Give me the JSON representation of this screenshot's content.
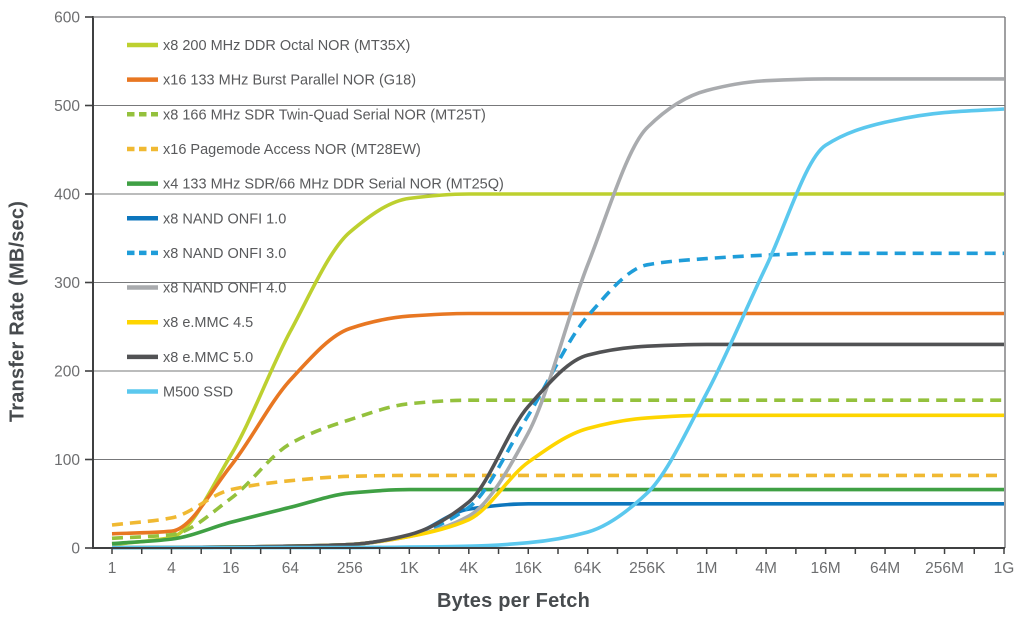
{
  "chart_data": {
    "type": "line",
    "title": "",
    "xlabel": "Bytes per Fetch",
    "ylabel": "Transfer Rate (MB/sec)",
    "x_scale": "log-categorical",
    "x_categories": [
      "1",
      "4",
      "16",
      "64",
      "256",
      "1K",
      "4K",
      "16K",
      "64K",
      "256K",
      "1M",
      "4M",
      "16M",
      "64M",
      "256M",
      "1G"
    ],
    "y_ticks": [
      0,
      100,
      200,
      300,
      400,
      500,
      600
    ],
    "ylim": [
      0,
      600
    ],
    "grid": "horizontal",
    "legend_position": "top-left-inside",
    "colors": {
      "axis": "#3f4041",
      "gridline": "#77787a",
      "tick_label": "#6d6e70",
      "legend_text": "#595a5c",
      "axis_title": "#474b4e"
    },
    "series": [
      {
        "name": "x8 200 MHz DDR Octal NOR (MT35X)",
        "color": "#bdd02f",
        "dash": "solid",
        "values": [
          4,
          12,
          105,
          245,
          357,
          395,
          400,
          400,
          400,
          400,
          400,
          400,
          400,
          400,
          400,
          400
        ]
      },
      {
        "name": "x16 133 MHz Burst Parallel NOR (G18)",
        "color": "#e87722",
        "dash": "solid",
        "values": [
          16,
          19,
          93,
          190,
          248,
          262,
          265,
          265,
          265,
          265,
          265,
          265,
          265,
          265,
          265,
          265
        ]
      },
      {
        "name": "x8 166 MHz SDR Twin-Quad Serial NOR (MT25T)",
        "color": "#94c13d",
        "dash": "dashed",
        "values": [
          11,
          15,
          56,
          118,
          145,
          163,
          167,
          167,
          167,
          167,
          167,
          167,
          167,
          167,
          167,
          167
        ]
      },
      {
        "name": "x16 Pagemode Access  NOR (MT28EW)",
        "color": "#f0b932",
        "dash": "dashed",
        "values": [
          26,
          34,
          66,
          76,
          81,
          82,
          82,
          82,
          82,
          82,
          82,
          82,
          82,
          82,
          82,
          82
        ]
      },
      {
        "name": "x4 133 MHz SDR/66 MHz DDR Serial NOR (MT25Q)",
        "color": "#3fa044",
        "dash": "solid",
        "values": [
          5,
          10,
          29,
          46,
          62,
          66,
          66,
          66,
          66,
          66,
          66,
          66,
          66,
          66,
          66,
          66
        ]
      },
      {
        "name": "x8 NAND ONFI 1.0",
        "color": "#0d76bd",
        "dash": "solid",
        "values": [
          0.3,
          0.5,
          1,
          2,
          4,
          14,
          44,
          50,
          50,
          50,
          50,
          50,
          50,
          50,
          50,
          50
        ]
      },
      {
        "name": "x8 NAND ONFI 3.0",
        "color": "#1f9dd9",
        "dash": "dashed",
        "values": [
          0.3,
          0.5,
          1,
          2,
          4,
          14,
          46,
          150,
          262,
          320,
          327,
          331,
          333,
          333,
          333,
          333
        ]
      },
      {
        "name": "x8 NAND ONFI 4.0",
        "color": "#a9abae",
        "dash": "solid",
        "values": [
          0.3,
          0.5,
          1,
          2,
          4,
          13,
          36,
          130,
          320,
          475,
          517,
          528,
          530,
          530,
          530,
          530
        ]
      },
      {
        "name": "x8 e.MMC 4.5",
        "color": "#fed500",
        "dash": "solid",
        "values": [
          0.3,
          0.5,
          1,
          2,
          4,
          13,
          32,
          97,
          135,
          147,
          150,
          150,
          150,
          150,
          150,
          150
        ]
      },
      {
        "name": "x8 e.MMC 5.0",
        "color": "#515254",
        "dash": "solid",
        "values": [
          0.3,
          0.5,
          1,
          2,
          4,
          15,
          52,
          160,
          218,
          228,
          230,
          230,
          230,
          230,
          230,
          230
        ]
      },
      {
        "name": "M500 SSD",
        "color": "#5bc8ee",
        "dash": "solid",
        "values": [
          0.5,
          0.5,
          0.5,
          0.5,
          0.5,
          1,
          2,
          6,
          18,
          62,
          175,
          318,
          455,
          481,
          492,
          496
        ]
      }
    ]
  }
}
